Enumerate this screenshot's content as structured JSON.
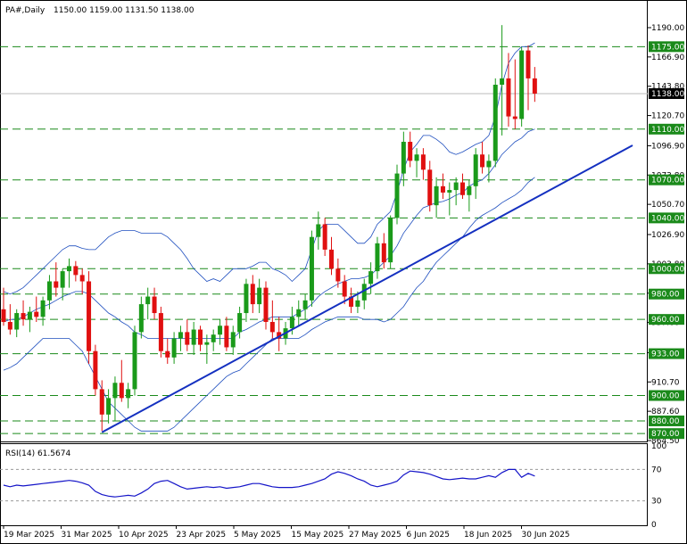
{
  "header": {
    "symbol_timeframe": "PA#,Daily",
    "ohlc": "1150.00 1159.00 1131.50 1138.00"
  },
  "rsi_label": "RSI(14) 61.5674",
  "colors": {
    "bull": "#1a9a1a",
    "bear": "#e01010",
    "bands": "#1f4fbf",
    "trendline": "#1430c0",
    "level_line": "#1a8a1a",
    "label_bg": "#1a8a1a",
    "price_label_bg": "#000000",
    "rsi_line": "#1414c8"
  },
  "chart_data": {
    "type": "candlestick",
    "symbol": "PA#",
    "timeframe": "Daily",
    "current_price": 1138.0,
    "price_axis": {
      "range": [
        864.5,
        1200
      ],
      "ticks": [
        1190.0,
        1166.9,
        1143.8,
        1120.7,
        1096.9,
        1073.8,
        1050.7,
        1026.9,
        1003.8,
        980.7,
        957.6,
        933.8,
        910.7,
        887.6,
        864.5
      ]
    },
    "horizontal_levels": [
      "1175.00",
      "1110.00",
      "1070.00",
      "1040.00",
      "1000.00",
      "980.00",
      "960.00",
      "933.00",
      "900.00",
      "880.00",
      "870.00"
    ],
    "x_labels": [
      "19 Mar 2025",
      "31 Mar 2025",
      "10 Apr 2025",
      "23 Apr 2025",
      "5 May 2025",
      "15 May 2025",
      "27 May 2025",
      "6 Jun 2025",
      "18 Jun 2025",
      "30 Jun 2025"
    ],
    "candles": [
      {
        "o": 968,
        "h": 985,
        "l": 955,
        "c": 958
      },
      {
        "o": 958,
        "h": 972,
        "l": 948,
        "c": 952
      },
      {
        "o": 952,
        "h": 968,
        "l": 946,
        "c": 965
      },
      {
        "o": 965,
        "h": 975,
        "l": 955,
        "c": 960
      },
      {
        "o": 960,
        "h": 970,
        "l": 950,
        "c": 966
      },
      {
        "o": 966,
        "h": 978,
        "l": 958,
        "c": 962
      },
      {
        "o": 962,
        "h": 978,
        "l": 955,
        "c": 975
      },
      {
        "o": 975,
        "h": 995,
        "l": 968,
        "c": 990
      },
      {
        "o": 990,
        "h": 1005,
        "l": 978,
        "c": 985
      },
      {
        "o": 985,
        "h": 1000,
        "l": 975,
        "c": 998
      },
      {
        "o": 998,
        "h": 1008,
        "l": 985,
        "c": 1002
      },
      {
        "o": 1002,
        "h": 1006,
        "l": 990,
        "c": 995
      },
      {
        "o": 995,
        "h": 1000,
        "l": 980,
        "c": 990
      },
      {
        "o": 990,
        "h": 998,
        "l": 925,
        "c": 935
      },
      {
        "o": 935,
        "h": 940,
        "l": 900,
        "c": 905
      },
      {
        "o": 905,
        "h": 912,
        "l": 872,
        "c": 885
      },
      {
        "o": 885,
        "h": 905,
        "l": 878,
        "c": 898
      },
      {
        "o": 898,
        "h": 915,
        "l": 880,
        "c": 910
      },
      {
        "o": 910,
        "h": 928,
        "l": 895,
        "c": 898
      },
      {
        "o": 898,
        "h": 910,
        "l": 890,
        "c": 905
      },
      {
        "o": 905,
        "h": 955,
        "l": 900,
        "c": 950
      },
      {
        "o": 950,
        "h": 978,
        "l": 945,
        "c": 972
      },
      {
        "o": 972,
        "h": 985,
        "l": 960,
        "c": 978
      },
      {
        "o": 978,
        "h": 985,
        "l": 960,
        "c": 965
      },
      {
        "o": 965,
        "h": 970,
        "l": 930,
        "c": 935
      },
      {
        "o": 935,
        "h": 945,
        "l": 925,
        "c": 930
      },
      {
        "o": 930,
        "h": 950,
        "l": 925,
        "c": 945
      },
      {
        "o": 945,
        "h": 955,
        "l": 935,
        "c": 950
      },
      {
        "o": 950,
        "h": 960,
        "l": 935,
        "c": 940
      },
      {
        "o": 940,
        "h": 958,
        "l": 932,
        "c": 952
      },
      {
        "o": 952,
        "h": 955,
        "l": 935,
        "c": 940
      },
      {
        "o": 940,
        "h": 948,
        "l": 925,
        "c": 942
      },
      {
        "o": 942,
        "h": 952,
        "l": 935,
        "c": 948
      },
      {
        "o": 948,
        "h": 960,
        "l": 940,
        "c": 955
      },
      {
        "o": 955,
        "h": 962,
        "l": 935,
        "c": 938
      },
      {
        "o": 938,
        "h": 955,
        "l": 932,
        "c": 950
      },
      {
        "o": 950,
        "h": 970,
        "l": 945,
        "c": 965
      },
      {
        "o": 965,
        "h": 992,
        "l": 958,
        "c": 988
      },
      {
        "o": 988,
        "h": 995,
        "l": 965,
        "c": 972
      },
      {
        "o": 972,
        "h": 992,
        "l": 965,
        "c": 985
      },
      {
        "o": 985,
        "h": 990,
        "l": 952,
        "c": 958
      },
      {
        "o": 958,
        "h": 975,
        "l": 945,
        "c": 950
      },
      {
        "o": 950,
        "h": 962,
        "l": 935,
        "c": 945
      },
      {
        "o": 945,
        "h": 958,
        "l": 940,
        "c": 953
      },
      {
        "o": 953,
        "h": 970,
        "l": 948,
        "c": 962
      },
      {
        "o": 962,
        "h": 975,
        "l": 955,
        "c": 968
      },
      {
        "o": 968,
        "h": 980,
        "l": 960,
        "c": 975
      },
      {
        "o": 975,
        "h": 1030,
        "l": 970,
        "c": 1025
      },
      {
        "o": 1025,
        "h": 1045,
        "l": 1015,
        "c": 1035
      },
      {
        "o": 1035,
        "h": 1040,
        "l": 1010,
        "c": 1015
      },
      {
        "o": 1015,
        "h": 1025,
        "l": 995,
        "c": 1000
      },
      {
        "o": 1000,
        "h": 1008,
        "l": 985,
        "c": 990
      },
      {
        "o": 990,
        "h": 995,
        "l": 972,
        "c": 978
      },
      {
        "o": 978,
        "h": 985,
        "l": 965,
        "c": 970
      },
      {
        "o": 970,
        "h": 982,
        "l": 965,
        "c": 975
      },
      {
        "o": 975,
        "h": 992,
        "l": 968,
        "c": 988
      },
      {
        "o": 988,
        "h": 1005,
        "l": 980,
        "c": 998
      },
      {
        "o": 998,
        "h": 1025,
        "l": 992,
        "c": 1020
      },
      {
        "o": 1020,
        "h": 1028,
        "l": 1000,
        "c": 1005
      },
      {
        "o": 1005,
        "h": 1042,
        "l": 1000,
        "c": 1040
      },
      {
        "o": 1040,
        "h": 1082,
        "l": 1035,
        "c": 1075
      },
      {
        "o": 1075,
        "h": 1108,
        "l": 1065,
        "c": 1100
      },
      {
        "o": 1100,
        "h": 1108,
        "l": 1080,
        "c": 1085
      },
      {
        "o": 1085,
        "h": 1095,
        "l": 1072,
        "c": 1090
      },
      {
        "o": 1090,
        "h": 1095,
        "l": 1070,
        "c": 1078
      },
      {
        "o": 1078,
        "h": 1085,
        "l": 1045,
        "c": 1050
      },
      {
        "o": 1050,
        "h": 1072,
        "l": 1040,
        "c": 1065
      },
      {
        "o": 1065,
        "h": 1075,
        "l": 1055,
        "c": 1060
      },
      {
        "o": 1060,
        "h": 1068,
        "l": 1042,
        "c": 1062
      },
      {
        "o": 1062,
        "h": 1072,
        "l": 1050,
        "c": 1068
      },
      {
        "o": 1068,
        "h": 1075,
        "l": 1055,
        "c": 1058
      },
      {
        "o": 1058,
        "h": 1070,
        "l": 1045,
        "c": 1065
      },
      {
        "o": 1065,
        "h": 1095,
        "l": 1055,
        "c": 1090
      },
      {
        "o": 1090,
        "h": 1100,
        "l": 1075,
        "c": 1080
      },
      {
        "o": 1080,
        "h": 1090,
        "l": 1068,
        "c": 1085
      },
      {
        "o": 1085,
        "h": 1150,
        "l": 1080,
        "c": 1145
      },
      {
        "o": 1145,
        "h": 1192,
        "l": 1105,
        "c": 1150
      },
      {
        "o": 1150,
        "h": 1170,
        "l": 1112,
        "c": 1120
      },
      {
        "o": 1120,
        "h": 1165,
        "l": 1110,
        "c": 1118
      },
      {
        "o": 1118,
        "h": 1175,
        "l": 1112,
        "c": 1172
      },
      {
        "o": 1172,
        "h": 1176,
        "l": 1125,
        "c": 1150
      },
      {
        "o": 1150,
        "h": 1159,
        "l": 1131.5,
        "c": 1138
      }
    ],
    "bollinger": {
      "upper": [
        982,
        980,
        982,
        985,
        990,
        995,
        1000,
        1005,
        1010,
        1015,
        1018,
        1018,
        1016,
        1015,
        1015,
        1020,
        1025,
        1028,
        1030,
        1030,
        1030,
        1028,
        1028,
        1028,
        1028,
        1025,
        1020,
        1015,
        1008,
        1000,
        995,
        990,
        992,
        990,
        995,
        1000,
        1000,
        1000,
        1002,
        1005,
        1005,
        1000,
        998,
        995,
        990,
        995,
        1000,
        1015,
        1030,
        1035,
        1035,
        1035,
        1030,
        1025,
        1020,
        1020,
        1025,
        1035,
        1040,
        1045,
        1060,
        1078,
        1092,
        1098,
        1105,
        1105,
        1102,
        1098,
        1092,
        1090,
        1092,
        1095,
        1098,
        1100,
        1105,
        1120,
        1145,
        1162,
        1170,
        1175,
        1175,
        1178
      ],
      "middle": [
        958,
        960,
        960,
        962,
        965,
        968,
        970,
        972,
        975,
        978,
        980,
        982,
        982,
        980,
        975,
        970,
        965,
        962,
        958,
        955,
        950,
        948,
        945,
        945,
        945,
        945,
        945,
        945,
        945,
        945,
        945,
        945,
        945,
        945,
        945,
        945,
        950,
        952,
        955,
        958,
        960,
        962,
        962,
        962,
        962,
        965,
        968,
        972,
        978,
        982,
        985,
        988,
        990,
        992,
        992,
        993,
        995,
        1000,
        1005,
        1010,
        1018,
        1028,
        1035,
        1042,
        1048,
        1050,
        1052,
        1053,
        1055,
        1058,
        1060,
        1065,
        1068,
        1070,
        1075,
        1082,
        1090,
        1095,
        1100,
        1103,
        1108,
        1110
      ],
      "lower": [
        920,
        922,
        925,
        930,
        935,
        940,
        945,
        945,
        945,
        945,
        945,
        940,
        935,
        925,
        915,
        905,
        895,
        890,
        885,
        880,
        875,
        872,
        872,
        872,
        872,
        872,
        875,
        880,
        885,
        890,
        895,
        900,
        905,
        910,
        915,
        918,
        920,
        925,
        930,
        935,
        940,
        945,
        945,
        945,
        945,
        945,
        948,
        952,
        955,
        958,
        960,
        962,
        962,
        962,
        962,
        960,
        960,
        960,
        958,
        960,
        965,
        970,
        978,
        985,
        990,
        998,
        1005,
        1010,
        1015,
        1020,
        1025,
        1032,
        1038,
        1042,
        1045,
        1048,
        1052,
        1055,
        1058,
        1062,
        1068,
        1072
      ]
    },
    "trendline": {
      "from": {
        "index": 15,
        "price": 871
      },
      "to": {
        "index": 100,
        "price": 1100
      }
    },
    "rsi": {
      "period": 14,
      "value": 61.5674,
      "axis_range": [
        0,
        100
      ],
      "ticks": [
        "100",
        "70",
        "30",
        "0"
      ],
      "levels": [
        70,
        30
      ],
      "values": [
        50,
        48,
        50,
        49,
        50,
        51,
        52,
        53,
        54,
        55,
        56,
        55,
        53,
        50,
        42,
        38,
        36,
        35,
        36,
        37,
        36,
        40,
        45,
        52,
        55,
        56,
        52,
        48,
        45,
        46,
        47,
        48,
        47,
        48,
        46,
        47,
        48,
        50,
        52,
        52,
        50,
        48,
        47,
        47,
        47,
        48,
        50,
        52,
        55,
        58,
        64,
        67,
        65,
        62,
        58,
        55,
        50,
        48,
        50,
        52,
        55,
        63,
        68,
        67,
        66,
        64,
        61,
        58,
        57,
        58,
        59,
        58,
        58,
        60,
        62,
        60,
        66,
        70,
        70,
        60,
        65,
        61.5674
      ]
    }
  }
}
